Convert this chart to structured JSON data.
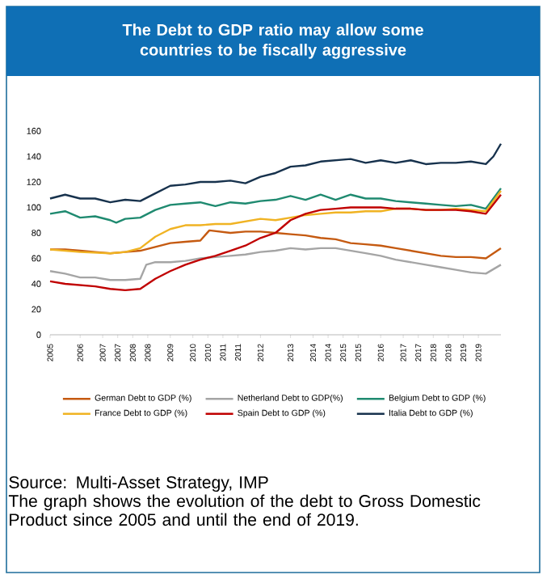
{
  "chart_data": {
    "type": "line",
    "title": "The Debt to GDP ratio may allow some countries to be fiscally aggressive",
    "xlim": [
      2005,
      2020
    ],
    "ylim": [
      0,
      160
    ],
    "yticks": [
      0,
      20,
      40,
      60,
      80,
      100,
      120,
      140,
      160
    ],
    "xticks": [
      {
        "value": 2005,
        "label": "2005"
      },
      {
        "value": 2006,
        "label": "2006"
      },
      {
        "value": 2006.75,
        "label": "2007"
      },
      {
        "value": 2007.25,
        "label": "2007"
      },
      {
        "value": 2007.75,
        "label": "2008"
      },
      {
        "value": 2008.25,
        "label": "2008"
      },
      {
        "value": 2009,
        "label": "2009"
      },
      {
        "value": 2009.75,
        "label": "2010"
      },
      {
        "value": 2010.25,
        "label": "2010"
      },
      {
        "value": 2010.75,
        "label": "2011"
      },
      {
        "value": 2011.25,
        "label": "2011"
      },
      {
        "value": 2012,
        "label": "2012"
      },
      {
        "value": 2013,
        "label": "2013"
      },
      {
        "value": 2013.75,
        "label": "2014"
      },
      {
        "value": 2014.25,
        "label": "2014"
      },
      {
        "value": 2014.75,
        "label": "2015"
      },
      {
        "value": 2015.25,
        "label": "2015"
      },
      {
        "value": 2016,
        "label": "2016"
      },
      {
        "value": 2016.75,
        "label": "2017"
      },
      {
        "value": 2017.25,
        "label": "2017"
      },
      {
        "value": 2017.75,
        "label": "2018"
      },
      {
        "value": 2018.25,
        "label": "2018"
      },
      {
        "value": 2018.75,
        "label": "2019"
      },
      {
        "value": 2019.25,
        "label": "2019"
      }
    ],
    "legend": "bottom",
    "marker": "none",
    "line_style": "solid",
    "series": [
      {
        "name": "German Debt to GDP (%)",
        "color": "#c55a11",
        "x": [
          2005,
          2005.5,
          2006,
          2006.5,
          2007,
          2007.5,
          2008,
          2008.5,
          2009,
          2009.5,
          2010,
          2010.3,
          2011,
          2011.5,
          2012,
          2012.5,
          2013,
          2013.5,
          2014,
          2014.5,
          2015,
          2015.5,
          2016,
          2016.5,
          2017,
          2017.5,
          2018,
          2018.5,
          2019,
          2019.5,
          2020
        ],
        "values": [
          67,
          67,
          66,
          65,
          64,
          65,
          66,
          69,
          72,
          73,
          74,
          82,
          80,
          81,
          81,
          80,
          79,
          78,
          76,
          75,
          72,
          71,
          70,
          68,
          66,
          64,
          62,
          61,
          61,
          60,
          68
        ]
      },
      {
        "name": "Netherland Debt to GDP(%)",
        "color": "#a5a5a5",
        "x": [
          2005,
          2005.5,
          2006,
          2006.5,
          2007,
          2007.5,
          2008,
          2008.2,
          2008.5,
          2009,
          2009.5,
          2010,
          2010.5,
          2011,
          2011.5,
          2012,
          2012.5,
          2013,
          2013.5,
          2014,
          2014.5,
          2015,
          2015.5,
          2016,
          2016.5,
          2017,
          2017.5,
          2018,
          2018.5,
          2019,
          2019.5,
          2020
        ],
        "values": [
          50,
          48,
          45,
          45,
          43,
          43,
          44,
          55,
          57,
          57,
          58,
          60,
          61,
          62,
          63,
          65,
          66,
          68,
          67,
          68,
          68,
          66,
          64,
          62,
          59,
          57,
          55,
          53,
          51,
          49,
          48,
          55
        ]
      },
      {
        "name": "Belgium Debt to GDP (%)",
        "color": "#1f8a70",
        "x": [
          2005,
          2005.5,
          2006,
          2006.5,
          2007,
          2007.2,
          2007.5,
          2008,
          2008.5,
          2009,
          2009.5,
          2010,
          2010.5,
          2011,
          2011.5,
          2012,
          2012.5,
          2013,
          2013.5,
          2014,
          2014.5,
          2015,
          2015.5,
          2016,
          2016.5,
          2017,
          2017.5,
          2018,
          2018.5,
          2019,
          2019.5,
          2020
        ],
        "values": [
          95,
          97,
          92,
          93,
          90,
          88,
          91,
          92,
          98,
          102,
          103,
          104,
          101,
          104,
          103,
          105,
          106,
          109,
          106,
          110,
          106,
          110,
          107,
          107,
          105,
          104,
          103,
          102,
          101,
          102,
          99,
          115
        ]
      },
      {
        "name": "France Debt to GDP (%)",
        "color": "#f0b323",
        "x": [
          2005,
          2006,
          2007,
          2007.5,
          2008,
          2008.5,
          2009,
          2009.5,
          2010,
          2010.5,
          2011,
          2011.5,
          2012,
          2012.5,
          2013,
          2013.5,
          2014,
          2014.5,
          2015,
          2015.5,
          2016,
          2016.5,
          2017,
          2017.5,
          2018,
          2018.5,
          2019,
          2019.5,
          2020
        ],
        "values": [
          67,
          65,
          64,
          65,
          68,
          77,
          83,
          86,
          86,
          87,
          87,
          89,
          91,
          90,
          92,
          94,
          95,
          96,
          96,
          97,
          97,
          99,
          99,
          98,
          98,
          99,
          98,
          97,
          113
        ]
      },
      {
        "name": "Spain Debt  to GDP (%)",
        "color": "#c00000",
        "x": [
          2005,
          2005.5,
          2006,
          2006.5,
          2007,
          2007.5,
          2008,
          2008.5,
          2009,
          2009.5,
          2010,
          2010.5,
          2011,
          2011.5,
          2012,
          2012.5,
          2013,
          2013.5,
          2014,
          2014.5,
          2015,
          2015.5,
          2016,
          2016.5,
          2017,
          2017.5,
          2018,
          2018.5,
          2019,
          2019.5,
          2020
        ],
        "values": [
          42,
          40,
          39,
          38,
          36,
          35,
          36,
          44,
          50,
          55,
          59,
          62,
          66,
          70,
          76,
          80,
          90,
          95,
          98,
          99,
          100,
          100,
          100,
          99,
          99,
          98,
          98,
          98,
          97,
          95,
          110
        ]
      },
      {
        "name": "Italia Debt to GDP (%)",
        "color": "#17324d",
        "x": [
          2005,
          2005.5,
          2006,
          2006.5,
          2007,
          2007.5,
          2008,
          2008.5,
          2009,
          2009.5,
          2010,
          2010.5,
          2011,
          2011.5,
          2012,
          2012.5,
          2013,
          2013.5,
          2014,
          2014.5,
          2015,
          2015.5,
          2016,
          2016.5,
          2017,
          2017.5,
          2018,
          2018.5,
          2019,
          2019.5,
          2019.75,
          2020
        ],
        "values": [
          107,
          110,
          107,
          107,
          104,
          106,
          105,
          111,
          117,
          118,
          120,
          120,
          121,
          119,
          124,
          127,
          132,
          133,
          136,
          137,
          138,
          135,
          137,
          135,
          137,
          134,
          135,
          135,
          136,
          134,
          140,
          150
        ]
      }
    ],
    "annotations": [
      "Source: Multi-Asset Strategy, IMP",
      "The graph shows the evolution of the debt to Gross Domestic Product since 2005 and until the end of 2019."
    ]
  }
}
